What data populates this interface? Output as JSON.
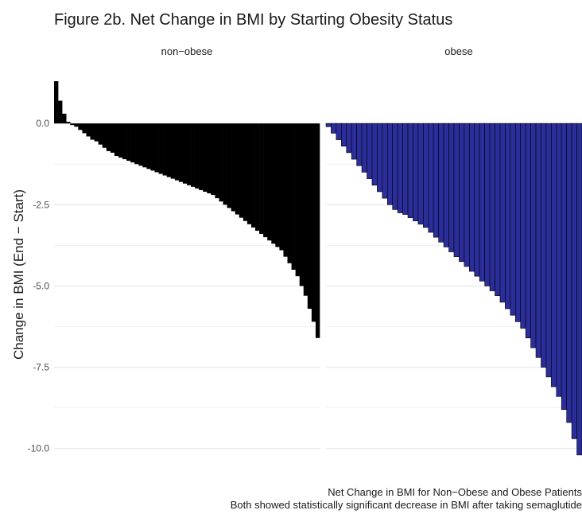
{
  "title": "Figure 2b. Net Change in BMI by Starting Obesity Status",
  "caption_lines": [
    "Net Change in BMI for Non−Obese and Obese Patients",
    "Both showed statistically significant decrease in BMI after taking semaglutide"
  ],
  "colors": {
    "non_obese": "#000000",
    "obese": "#2b2d9a",
    "obese_outline": "#000000",
    "grid": "#ebebeb"
  },
  "chart_data": {
    "type": "bar",
    "title": "Figure 2b. Net Change in BMI by Starting Obesity Status",
    "xlabel": "",
    "ylabel": "Change in BMI (End − Start)",
    "ylim": [
      -10.35,
      1.35
    ],
    "yticks": [
      0.0,
      -2.5,
      -5.0,
      -7.5,
      -10.0
    ],
    "ytick_labels": [
      "0.0",
      "-2.5",
      "-5.0",
      "-7.5",
      "-10.0"
    ],
    "grid": true,
    "legend": "none",
    "facets": [
      {
        "label": "non−obese",
        "sorted": "descending",
        "values": [
          1.3,
          0.7,
          0.3,
          0.05,
          -0.05,
          -0.1,
          -0.2,
          -0.3,
          -0.4,
          -0.5,
          -0.55,
          -0.65,
          -0.75,
          -0.85,
          -0.9,
          -1.0,
          -1.05,
          -1.1,
          -1.15,
          -1.2,
          -1.25,
          -1.3,
          -1.35,
          -1.4,
          -1.45,
          -1.5,
          -1.55,
          -1.6,
          -1.65,
          -1.7,
          -1.75,
          -1.8,
          -1.85,
          -1.9,
          -1.95,
          -2.0,
          -2.05,
          -2.1,
          -2.15,
          -2.2,
          -2.3,
          -2.4,
          -2.5,
          -2.6,
          -2.7,
          -2.8,
          -2.9,
          -3.0,
          -3.1,
          -3.2,
          -3.3,
          -3.4,
          -3.5,
          -3.6,
          -3.7,
          -3.8,
          -3.9,
          -4.1,
          -4.3,
          -4.5,
          -4.7,
          -5.0,
          -5.3,
          -5.7,
          -6.1,
          -6.6
        ]
      },
      {
        "label": "obese",
        "sorted": "descending",
        "values": [
          -0.1,
          -0.3,
          -0.5,
          -0.7,
          -0.9,
          -1.1,
          -1.3,
          -1.5,
          -1.7,
          -1.9,
          -2.1,
          -2.3,
          -2.5,
          -2.65,
          -2.75,
          -2.8,
          -2.9,
          -3.0,
          -3.1,
          -3.2,
          -3.35,
          -3.5,
          -3.65,
          -3.8,
          -3.95,
          -4.1,
          -4.25,
          -4.4,
          -4.55,
          -4.7,
          -4.85,
          -5.0,
          -5.15,
          -5.3,
          -5.5,
          -5.7,
          -5.9,
          -6.1,
          -6.3,
          -6.6,
          -6.9,
          -7.2,
          -7.5,
          -7.8,
          -8.1,
          -8.4,
          -8.8,
          -9.2,
          -9.7,
          -10.2
        ]
      }
    ]
  }
}
